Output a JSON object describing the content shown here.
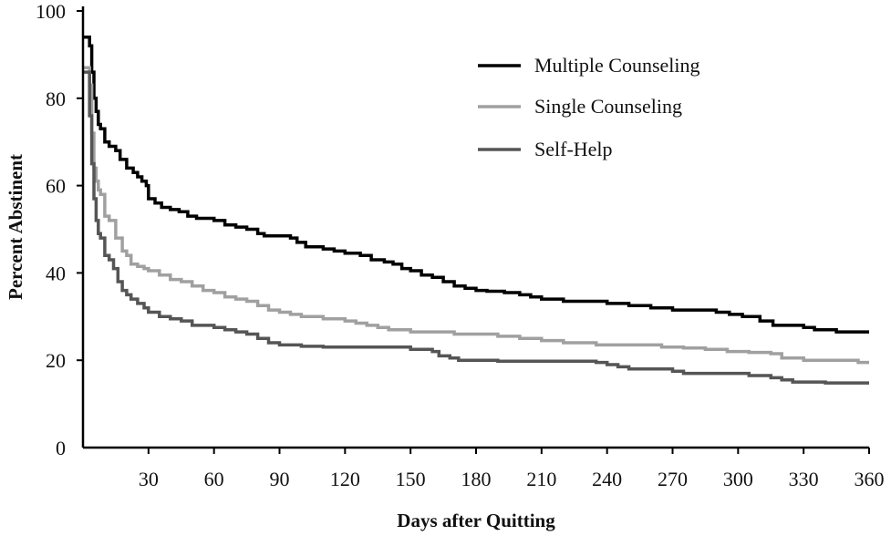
{
  "chart_data": {
    "type": "line",
    "title": "",
    "xlabel": "Days after Quitting",
    "ylabel": "Percent Abstinent",
    "xlim": [
      0,
      360
    ],
    "ylim": [
      0,
      100
    ],
    "x_ticks": [
      30,
      60,
      90,
      120,
      150,
      180,
      210,
      240,
      270,
      300,
      330,
      360
    ],
    "y_ticks": [
      0,
      20,
      40,
      60,
      80,
      100
    ],
    "grid": false,
    "legend_position": "top-right",
    "series": [
      {
        "name": "Multiple Counseling",
        "color": "#000000",
        "points": [
          [
            0,
            94
          ],
          [
            2,
            94
          ],
          [
            3,
            92
          ],
          [
            4,
            86
          ],
          [
            5,
            80
          ],
          [
            6,
            77
          ],
          [
            7,
            74
          ],
          [
            8,
            73
          ],
          [
            10,
            70
          ],
          [
            12,
            69
          ],
          [
            15,
            68
          ],
          [
            17,
            66
          ],
          [
            20,
            64
          ],
          [
            23,
            63
          ],
          [
            25,
            62
          ],
          [
            27,
            61
          ],
          [
            29,
            60
          ],
          [
            30,
            57
          ],
          [
            33,
            56
          ],
          [
            36,
            55
          ],
          [
            40,
            54.5
          ],
          [
            44,
            54
          ],
          [
            48,
            53
          ],
          [
            52,
            52.5
          ],
          [
            60,
            52
          ],
          [
            65,
            51
          ],
          [
            70,
            50.5
          ],
          [
            75,
            50
          ],
          [
            80,
            49
          ],
          [
            83,
            48.5
          ],
          [
            95,
            48
          ],
          [
            98,
            47
          ],
          [
            102,
            46
          ],
          [
            110,
            45.5
          ],
          [
            115,
            45
          ],
          [
            120,
            44.5
          ],
          [
            127,
            44
          ],
          [
            132,
            43
          ],
          [
            138,
            42.5
          ],
          [
            142,
            42
          ],
          [
            146,
            41
          ],
          [
            150,
            40.5
          ],
          [
            155,
            39.5
          ],
          [
            160,
            39
          ],
          [
            165,
            38
          ],
          [
            170,
            37
          ],
          [
            175,
            36.5
          ],
          [
            180,
            36
          ],
          [
            185,
            35.8
          ],
          [
            193,
            35.5
          ],
          [
            200,
            35
          ],
          [
            205,
            34.5
          ],
          [
            210,
            34
          ],
          [
            220,
            33.5
          ],
          [
            240,
            33
          ],
          [
            250,
            32.5
          ],
          [
            260,
            32
          ],
          [
            270,
            31.5
          ],
          [
            290,
            31
          ],
          [
            296,
            30.5
          ],
          [
            302,
            30
          ],
          [
            310,
            29
          ],
          [
            316,
            28
          ],
          [
            330,
            27.5
          ],
          [
            335,
            27
          ],
          [
            345,
            26.5
          ],
          [
            360,
            26.5
          ]
        ]
      },
      {
        "name": "Single Counseling",
        "color": "#a0a0a0",
        "points": [
          [
            0,
            87
          ],
          [
            2,
            87
          ],
          [
            3,
            83
          ],
          [
            4,
            72
          ],
          [
            5,
            64
          ],
          [
            6,
            61
          ],
          [
            7,
            59
          ],
          [
            8,
            58
          ],
          [
            10,
            53
          ],
          [
            12,
            52
          ],
          [
            15,
            48
          ],
          [
            18,
            45
          ],
          [
            20,
            44
          ],
          [
            22,
            42
          ],
          [
            25,
            41.5
          ],
          [
            28,
            41
          ],
          [
            30,
            40.5
          ],
          [
            35,
            39.5
          ],
          [
            40,
            38.5
          ],
          [
            45,
            38
          ],
          [
            50,
            37
          ],
          [
            55,
            36
          ],
          [
            60,
            35.5
          ],
          [
            65,
            34.5
          ],
          [
            70,
            34
          ],
          [
            75,
            33.5
          ],
          [
            80,
            32.5
          ],
          [
            85,
            31.5
          ],
          [
            90,
            31
          ],
          [
            95,
            30.5
          ],
          [
            100,
            30
          ],
          [
            110,
            29.5
          ],
          [
            120,
            29
          ],
          [
            125,
            28.5
          ],
          [
            130,
            28
          ],
          [
            135,
            27.5
          ],
          [
            140,
            27
          ],
          [
            150,
            26.5
          ],
          [
            160,
            26.5
          ],
          [
            170,
            26
          ],
          [
            180,
            26
          ],
          [
            190,
            25.5
          ],
          [
            200,
            25
          ],
          [
            210,
            24.5
          ],
          [
            220,
            24
          ],
          [
            235,
            23.5
          ],
          [
            260,
            23.5
          ],
          [
            265,
            23
          ],
          [
            275,
            22.8
          ],
          [
            285,
            22.5
          ],
          [
            295,
            22
          ],
          [
            305,
            21.8
          ],
          [
            315,
            21.5
          ],
          [
            320,
            20.5
          ],
          [
            330,
            20
          ],
          [
            345,
            20
          ],
          [
            355,
            19.5
          ],
          [
            360,
            19.5
          ]
        ]
      },
      {
        "name": "Self-Help",
        "color": "#555555",
        "points": [
          [
            0,
            86
          ],
          [
            2,
            86
          ],
          [
            3,
            76
          ],
          [
            4,
            65
          ],
          [
            5,
            57
          ],
          [
            6,
            52
          ],
          [
            7,
            49
          ],
          [
            8,
            48
          ],
          [
            10,
            44
          ],
          [
            12,
            43
          ],
          [
            14,
            41
          ],
          [
            16,
            38
          ],
          [
            18,
            36
          ],
          [
            20,
            35
          ],
          [
            22,
            34
          ],
          [
            25,
            33
          ],
          [
            28,
            32
          ],
          [
            30,
            31
          ],
          [
            35,
            30
          ],
          [
            40,
            29.5
          ],
          [
            45,
            29
          ],
          [
            50,
            28
          ],
          [
            60,
            27.5
          ],
          [
            65,
            27
          ],
          [
            70,
            26.5
          ],
          [
            75,
            26
          ],
          [
            80,
            25
          ],
          [
            85,
            24
          ],
          [
            90,
            23.5
          ],
          [
            100,
            23.2
          ],
          [
            110,
            23
          ],
          [
            150,
            22.5
          ],
          [
            160,
            22
          ],
          [
            163,
            21
          ],
          [
            168,
            20.5
          ],
          [
            172,
            20
          ],
          [
            180,
            20
          ],
          [
            190,
            19.8
          ],
          [
            235,
            19.5
          ],
          [
            240,
            19
          ],
          [
            245,
            18.5
          ],
          [
            250,
            18
          ],
          [
            265,
            18
          ],
          [
            270,
            17.5
          ],
          [
            275,
            17
          ],
          [
            300,
            17
          ],
          [
            305,
            16.5
          ],
          [
            315,
            16
          ],
          [
            320,
            15.5
          ],
          [
            325,
            15
          ],
          [
            335,
            15
          ],
          [
            340,
            14.8
          ],
          [
            360,
            14.8
          ]
        ]
      }
    ]
  }
}
